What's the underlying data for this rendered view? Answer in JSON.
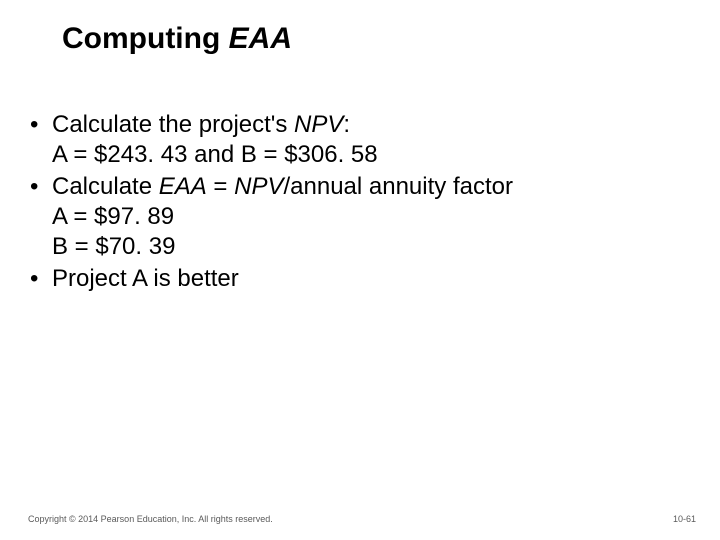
{
  "title": {
    "prefix": "Computing ",
    "emphasis": "EAA"
  },
  "bullets": [
    {
      "lines": [
        {
          "segments": [
            {
              "t": "Calculate the project's "
            },
            {
              "t": "NPV",
              "i": true
            },
            {
              "t": ":"
            }
          ]
        },
        {
          "segments": [
            {
              "t": "A = $243. 43 and B = $306. 58"
            }
          ]
        }
      ]
    },
    {
      "lines": [
        {
          "segments": [
            {
              "t": "Calculate "
            },
            {
              "t": "EAA",
              "i": true
            },
            {
              "t": " = "
            },
            {
              "t": "NPV",
              "i": true
            },
            {
              "t": "/annual annuity factor"
            }
          ]
        },
        {
          "segments": [
            {
              "t": "A = $97. 89"
            }
          ]
        },
        {
          "segments": [
            {
              "t": "B = $70. 39"
            }
          ]
        }
      ]
    },
    {
      "lines": [
        {
          "segments": [
            {
              "t": "Project A is better"
            }
          ]
        }
      ]
    }
  ],
  "footer": {
    "copyright": "Copyright © 2014 Pearson Education, Inc. All rights reserved.",
    "page": "10-61"
  },
  "style": {
    "title_fontsize": 30,
    "body_fontsize": 24,
    "footer_fontsize": 9,
    "text_color": "#000000",
    "footer_color": "#5a5a5a",
    "background": "#ffffff",
    "bullet_char": "•"
  }
}
